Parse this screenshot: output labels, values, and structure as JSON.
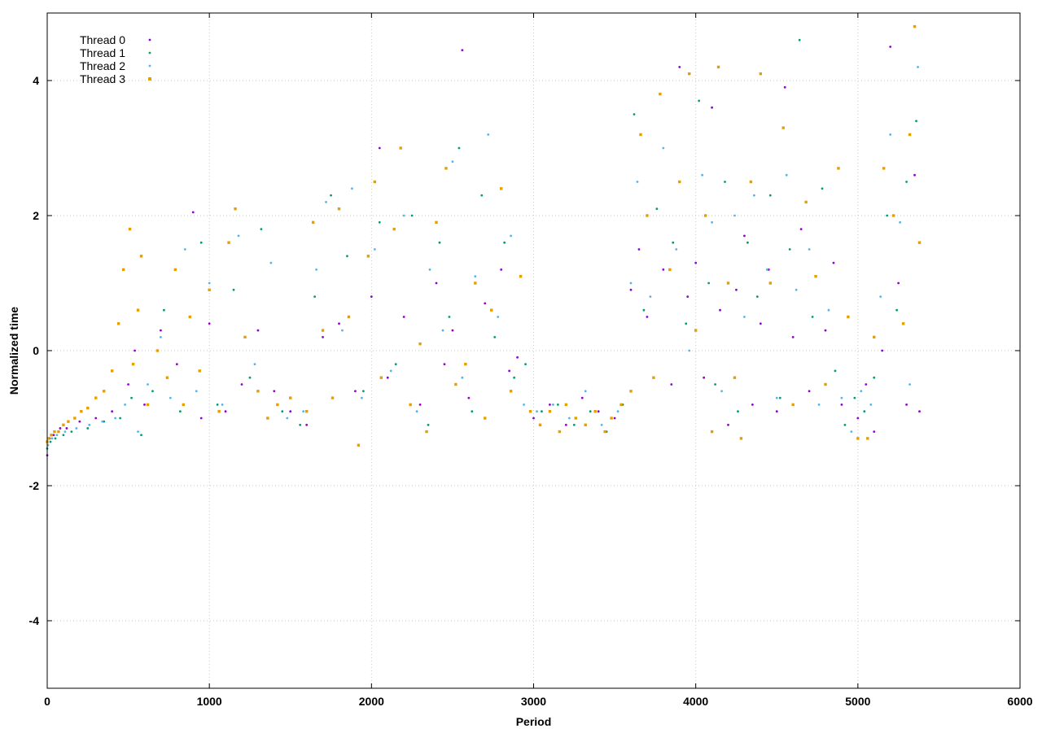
{
  "chart_data": {
    "type": "scatter",
    "title": "",
    "xlabel": "Period",
    "ylabel": "Normalized time",
    "xlim": [
      0,
      6000
    ],
    "ylim": [
      -5,
      5
    ],
    "x_ticks": [
      0,
      1000,
      2000,
      3000,
      4000,
      5000,
      6000
    ],
    "y_ticks": [
      -4,
      -2,
      0,
      2,
      4
    ],
    "x_tick_labels": [
      "0",
      "1000",
      "2000",
      "3000",
      "4000",
      "5000",
      "6000"
    ],
    "y_tick_labels": [
      "-4",
      "-2",
      "0",
      "2",
      "4"
    ],
    "grid": true,
    "legend_position": "top-left",
    "series": [
      {
        "name": "Thread 0",
        "color": "#9400d3",
        "marker": "dot",
        "x": [
          0,
          15,
          40,
          80,
          120,
          200,
          300,
          400,
          500,
          540,
          600,
          700,
          800,
          900,
          950,
          1000,
          1100,
          1200,
          1300,
          1400,
          1500,
          1600,
          1700,
          1800,
          1900,
          2000,
          2050,
          2100,
          2200,
          2300,
          2400,
          2450,
          2500,
          2560,
          2600,
          2700,
          2800,
          2850,
          2900,
          3000,
          3100,
          3200,
          3300,
          3400,
          3500,
          3600,
          3650,
          3700,
          3800,
          3850,
          3900,
          3950,
          4000,
          4050,
          4100,
          4150,
          4200,
          4250,
          4300,
          4350,
          4400,
          4450,
          4500,
          4550,
          4600,
          4650,
          4700,
          4800,
          4850,
          4900,
          5000,
          5050,
          5100,
          5150,
          5200,
          5250,
          5300,
          5350,
          5380
        ],
        "y": [
          -1.55,
          -1.3,
          -1.25,
          -1.15,
          -1.15,
          -1.05,
          -1.0,
          -0.9,
          -0.5,
          0.0,
          -0.8,
          0.3,
          -0.2,
          2.05,
          -1.0,
          0.4,
          -0.9,
          -0.5,
          0.3,
          -0.6,
          -0.9,
          -1.1,
          0.2,
          0.4,
          -0.6,
          0.8,
          3.0,
          -0.4,
          0.5,
          -0.8,
          1.0,
          -0.2,
          0.3,
          4.45,
          -0.7,
          0.7,
          1.2,
          -0.3,
          -0.1,
          -1.0,
          -0.8,
          -1.1,
          -0.7,
          -0.9,
          -1.0,
          0.9,
          1.5,
          0.5,
          1.2,
          -0.5,
          4.2,
          0.8,
          1.3,
          -0.4,
          3.6,
          0.6,
          -1.1,
          0.9,
          1.7,
          -0.8,
          0.4,
          1.2,
          -0.9,
          3.9,
          0.2,
          1.8,
          -0.6,
          0.3,
          1.3,
          -0.8,
          -1.0,
          -0.5,
          -1.2,
          0.0,
          4.5,
          1.0,
          -0.8,
          2.6,
          -0.9
        ]
      },
      {
        "name": "Thread 1",
        "color": "#009e73",
        "marker": "dot",
        "x": [
          0,
          20,
          50,
          100,
          150,
          250,
          350,
          450,
          520,
          580,
          650,
          720,
          820,
          950,
          1050,
          1150,
          1250,
          1320,
          1450,
          1560,
          1650,
          1750,
          1850,
          1950,
          2050,
          2150,
          2250,
          2350,
          2420,
          2480,
          2540,
          2620,
          2680,
          2760,
          2820,
          2880,
          2950,
          3050,
          3150,
          3250,
          3350,
          3450,
          3550,
          3620,
          3680,
          3760,
          3860,
          3940,
          4020,
          4080,
          4120,
          4180,
          4260,
          4320,
          4380,
          4460,
          4520,
          4580,
          4640,
          4720,
          4780,
          4860,
          4920,
          4980,
          5040,
          5100,
          5180,
          5240,
          5300,
          5360
        ],
        "y": [
          -1.45,
          -1.35,
          -1.3,
          -1.25,
          -1.2,
          -1.15,
          -1.05,
          -1.0,
          -0.7,
          -1.25,
          -0.6,
          0.6,
          -0.9,
          1.6,
          -0.8,
          0.9,
          -0.4,
          1.8,
          -0.9,
          -1.1,
          0.8,
          2.3,
          1.4,
          -0.6,
          1.9,
          -0.2,
          2.0,
          -1.1,
          1.6,
          0.5,
          3.0,
          -0.9,
          2.3,
          0.2,
          1.6,
          -0.4,
          -0.2,
          -0.9,
          -0.8,
          -1.1,
          -0.9,
          -1.2,
          -0.8,
          3.5,
          0.6,
          2.1,
          1.6,
          0.4,
          3.7,
          1.0,
          -0.5,
          2.5,
          -0.9,
          1.6,
          0.8,
          2.3,
          -0.7,
          1.5,
          4.6,
          0.5,
          2.4,
          -0.3,
          -1.1,
          -0.7,
          -0.9,
          -0.4,
          2.0,
          0.6,
          2.5,
          3.4
        ]
      },
      {
        "name": "Thread 2",
        "color": "#56b4e9",
        "marker": "dot",
        "x": [
          5,
          30,
          60,
          110,
          180,
          260,
          340,
          420,
          480,
          560,
          620,
          700,
          760,
          850,
          920,
          1000,
          1080,
          1180,
          1280,
          1380,
          1480,
          1580,
          1660,
          1720,
          1820,
          1880,
          1940,
          2020,
          2120,
          2200,
          2280,
          2360,
          2440,
          2500,
          2560,
          2640,
          2720,
          2780,
          2860,
          2940,
          3020,
          3120,
          3220,
          3320,
          3420,
          3520,
          3600,
          3640,
          3720,
          3800,
          3880,
          3960,
          4040,
          4100,
          4160,
          4240,
          4300,
          4360,
          4440,
          4500,
          4560,
          4620,
          4700,
          4760,
          4820,
          4900,
          4960,
          5020,
          5080,
          5140,
          5200,
          5260,
          5320,
          5370
        ],
        "y": [
          -1.4,
          -1.3,
          -1.25,
          -1.2,
          -1.15,
          -1.1,
          -1.05,
          -1.0,
          -0.8,
          -1.2,
          -0.5,
          0.2,
          -0.7,
          1.5,
          -0.6,
          1.0,
          -0.8,
          1.7,
          -0.2,
          1.3,
          -1.0,
          -0.9,
          1.2,
          2.2,
          0.3,
          2.4,
          -0.7,
          1.5,
          -0.3,
          2.0,
          -0.9,
          1.2,
          0.3,
          2.8,
          -0.4,
          1.1,
          3.2,
          0.5,
          1.7,
          -0.8,
          -0.9,
          -0.8,
          -1.0,
          -0.6,
          -1.1,
          -0.9,
          1.0,
          2.5,
          0.8,
          3.0,
          1.5,
          0.0,
          2.6,
          1.9,
          -0.6,
          2.0,
          0.5,
          2.3,
          1.2,
          -0.7,
          2.6,
          0.9,
          1.5,
          -0.8,
          0.6,
          -0.7,
          -1.2,
          -0.6,
          -0.8,
          0.8,
          3.2,
          1.9,
          -0.5,
          4.2
        ]
      },
      {
        "name": "Thread 3",
        "color": "#e69f00",
        "marker": "square",
        "x": [
          0,
          10,
          25,
          45,
          70,
          100,
          130,
          170,
          210,
          250,
          300,
          350,
          400,
          440,
          470,
          510,
          530,
          560,
          580,
          620,
          680,
          740,
          790,
          840,
          880,
          940,
          1000,
          1060,
          1120,
          1160,
          1220,
          1300,
          1360,
          1420,
          1500,
          1600,
          1640,
          1700,
          1760,
          1800,
          1860,
          1920,
          1980,
          2020,
          2060,
          2140,
          2180,
          2240,
          2300,
          2340,
          2400,
          2460,
          2520,
          2580,
          2640,
          2700,
          2740,
          2800,
          2860,
          2920,
          2980,
          3040,
          3100,
          3160,
          3200,
          3260,
          3320,
          3380,
          3440,
          3480,
          3540,
          3600,
          3660,
          3700,
          3740,
          3780,
          3840,
          3900,
          3960,
          4000,
          4060,
          4100,
          4140,
          4200,
          4240,
          4280,
          4340,
          4400,
          4460,
          4540,
          4600,
          4680,
          4740,
          4800,
          4880,
          4940,
          5000,
          5060,
          5100,
          5160,
          5220,
          5280,
          5320,
          5350,
          5380
        ],
        "y": [
          -1.35,
          -1.3,
          -1.25,
          -1.2,
          -1.2,
          -1.1,
          -1.05,
          -1.0,
          -0.9,
          -0.85,
          -0.7,
          -0.6,
          -0.3,
          0.4,
          1.2,
          1.8,
          -0.2,
          0.6,
          1.4,
          -0.8,
          0.0,
          -0.4,
          1.2,
          -0.8,
          0.5,
          -0.3,
          0.9,
          -0.9,
          1.6,
          2.1,
          0.2,
          -0.6,
          -1.0,
          -0.8,
          -0.7,
          -0.9,
          1.9,
          0.3,
          -0.7,
          2.1,
          0.5,
          -1.4,
          1.4,
          2.5,
          -0.4,
          1.8,
          3.0,
          -0.8,
          0.1,
          -1.2,
          1.9,
          2.7,
          -0.5,
          -0.2,
          1.0,
          -1.0,
          0.6,
          2.4,
          -0.6,
          1.1,
          -0.9,
          -1.1,
          -0.9,
          -1.2,
          -0.8,
          -1.0,
          -1.1,
          -0.9,
          -1.2,
          -1.0,
          -0.8,
          -0.6,
          3.2,
          2.0,
          -0.4,
          3.8,
          1.2,
          2.5,
          4.1,
          0.3,
          2.0,
          -1.2,
          4.2,
          1.0,
          -0.4,
          -1.3,
          2.5,
          4.1,
          1.0,
          3.3,
          -0.8,
          2.2,
          1.1,
          -0.5,
          2.7,
          0.5,
          -1.3,
          -1.3,
          0.2,
          2.7,
          2.0,
          0.4,
          3.2,
          4.8,
          1.6
        ]
      }
    ]
  },
  "legend": {
    "items": [
      {
        "label": "Thread 0",
        "color": "#9400d3",
        "marker": "dot"
      },
      {
        "label": "Thread 1",
        "color": "#009e73",
        "marker": "dot"
      },
      {
        "label": "Thread 2",
        "color": "#56b4e9",
        "marker": "dot"
      },
      {
        "label": "Thread 3",
        "color": "#e69f00",
        "marker": "square"
      }
    ]
  }
}
